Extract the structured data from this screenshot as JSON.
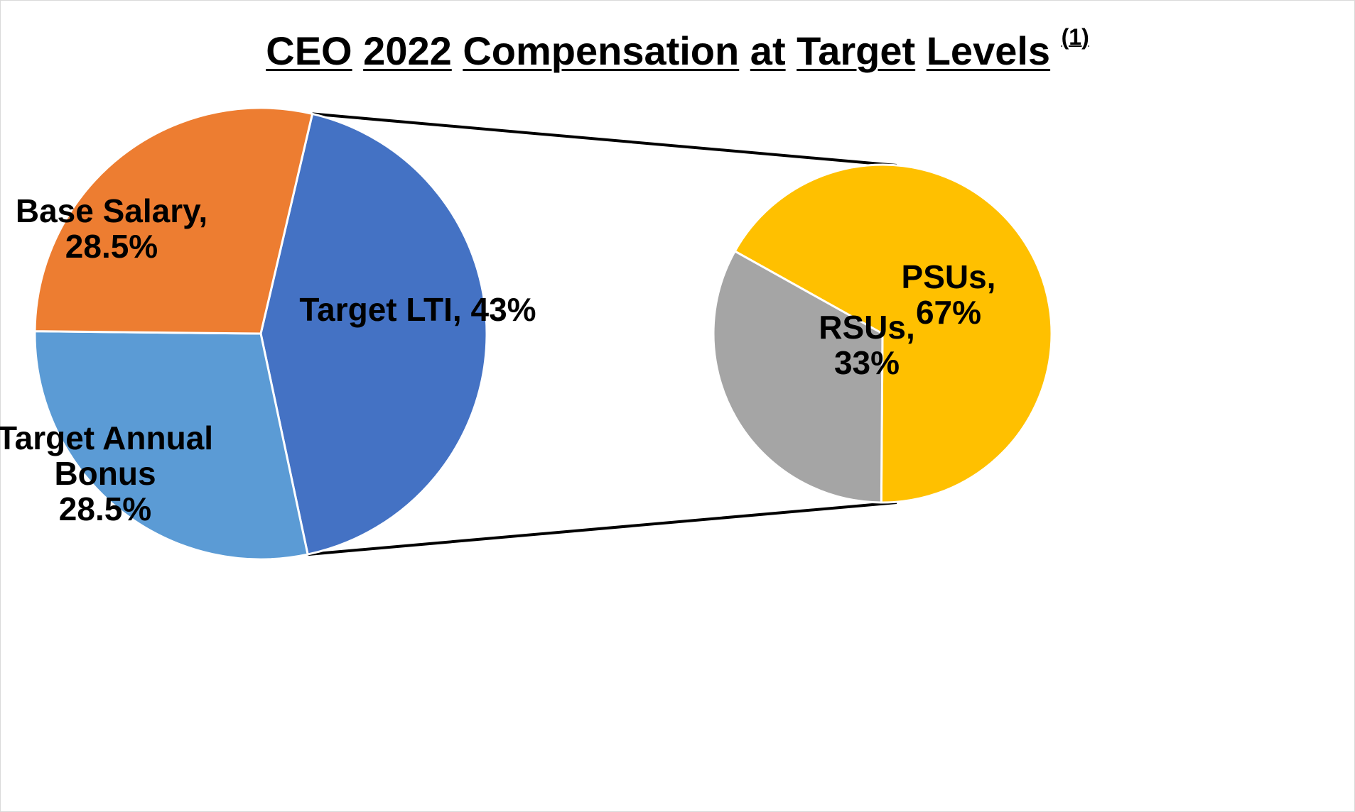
{
  "chart_data": {
    "type": "pie",
    "title_words": [
      "CEO",
      "2022",
      "Compensation",
      "at",
      "Target",
      "Levels"
    ],
    "title_footnote": "(1)",
    "main_pie": {
      "slices": [
        {
          "name": "Target LTI",
          "value": 43,
          "color": "#4472C4",
          "label_lines": [
            "Target LTI, 43%"
          ]
        },
        {
          "name": "Target Annual Bonus",
          "value": 28.5,
          "color": "#5B9BD5",
          "label_lines": [
            "Target Annual",
            "Bonus",
            "28.5%"
          ]
        },
        {
          "name": "Base Salary",
          "value": 28.5,
          "color": "#ED7D31",
          "label_lines": [
            "Base Salary,",
            "28.5%"
          ]
        }
      ]
    },
    "breakout_pie": {
      "source_slice": "Target LTI",
      "slices": [
        {
          "name": "PSUs",
          "value": 67,
          "color": "#FFC000",
          "label_lines": [
            "PSUs,",
            "67%"
          ]
        },
        {
          "name": "RSUs",
          "value": 33,
          "color": "#A5A5A5",
          "label_lines": [
            "RSUs,",
            "33%"
          ]
        }
      ]
    }
  }
}
